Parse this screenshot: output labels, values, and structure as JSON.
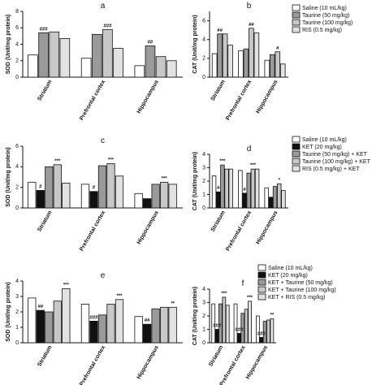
{
  "chart_data": [
    {
      "type": "bar",
      "title": "a",
      "y_label": "SOD (Unit/mg protein)",
      "categories": [
        "Striatum",
        "Prefrontal cortex",
        "Hippocampus"
      ],
      "ylim": [
        0,
        8
      ],
      "yticks": [
        0,
        2,
        4,
        6,
        8
      ],
      "legend": false,
      "series": [
        {
          "name": "Saline (10 mL/kg)",
          "color": "#ffffff",
          "values": [
            2.7,
            2.3,
            1.4
          ]
        },
        {
          "name": "Taurine (50 mg/kg)",
          "color": "#9a9a9a",
          "values": [
            5.4,
            5.2,
            3.8
          ]
        },
        {
          "name": "Taurine (100 mg/kg)",
          "color": "#c8c8c8",
          "values": [
            5.5,
            5.8,
            2.5
          ]
        },
        {
          "name": "RIS (0.5 mg/kg)",
          "color": "#e2e2e2",
          "values": [
            4.7,
            3.5,
            2.0
          ]
        }
      ],
      "annotations": [
        {
          "text": "###",
          "category": 0,
          "series": 1
        },
        {
          "text": "###",
          "category": 1,
          "series": 2
        },
        {
          "text": "##",
          "category": 2,
          "series": 1
        }
      ]
    },
    {
      "type": "bar",
      "title": "b",
      "y_label": "CAT (Unit/mg protein)",
      "categories": [
        "Striatum",
        "Prefrontal cortex",
        "Hippocampus"
      ],
      "ylim": [
        0,
        7
      ],
      "yticks": [
        0,
        2,
        4,
        6
      ],
      "legend": true,
      "series": [
        {
          "name": "Saline (10 mL/kg)",
          "color": "#ffffff",
          "values": [
            2.5,
            2.8,
            1.8
          ]
        },
        {
          "name": "Taurine (50 mg/kg)",
          "color": "#9a9a9a",
          "values": [
            4.6,
            3.0,
            2.4
          ]
        },
        {
          "name": "Taurine (100 mg/kg)",
          "color": "#c8c8c8",
          "values": [
            4.6,
            5.2,
            2.7
          ]
        },
        {
          "name": "RIS (0.5 mg/kg)",
          "color": "#e2e2e2",
          "values": [
            3.4,
            4.7,
            1.4
          ]
        }
      ],
      "annotations": [
        {
          "text": "##",
          "category": 0,
          "series": 1
        },
        {
          "text": "##",
          "category": 1,
          "series": 2
        },
        {
          "text": "#",
          "category": 2,
          "series": 2
        }
      ]
    },
    {
      "type": "bar",
      "title": "c",
      "y_label": "SOD (Unit/mg protein)",
      "categories": [
        "Striatum",
        "Prefrontal cortex",
        "Hippocampus"
      ],
      "ylim": [
        0,
        6
      ],
      "yticks": [
        0,
        2,
        4,
        6
      ],
      "legend": false,
      "series": [
        {
          "name": "Saline (10 mL/kg)",
          "color": "#ffffff",
          "values": [
            2.5,
            2.3,
            1.4
          ]
        },
        {
          "name": "KET (20 mg/kg)",
          "color": "#111111",
          "values": [
            1.7,
            1.6,
            0.9
          ]
        },
        {
          "name": "Taurine (50 mg/kg) + KET",
          "color": "#9a9a9a",
          "values": [
            4.0,
            4.1,
            2.3
          ]
        },
        {
          "name": "Taurine (100 mg/kg) + KET",
          "color": "#c8c8c8",
          "values": [
            4.2,
            4.3,
            2.5
          ]
        },
        {
          "name": "RIS (0.5 mg/kg) + KET",
          "color": "#e2e2e2",
          "values": [
            2.4,
            3.1,
            2.3
          ]
        }
      ],
      "annotations": [
        {
          "text": "#",
          "category": 0,
          "series": 1
        },
        {
          "text": "***",
          "category": 0,
          "series": 3
        },
        {
          "text": "#",
          "category": 1,
          "series": 1
        },
        {
          "text": "***",
          "category": 1,
          "series": 3
        },
        {
          "text": "***",
          "category": 2,
          "series": 3
        }
      ]
    },
    {
      "type": "bar",
      "title": "d",
      "y_label": "CAT (Unit/mg protein)",
      "categories": [
        "Striatum",
        "Prefrontal cortex",
        "Hippocampus"
      ],
      "ylim": [
        0,
        4
      ],
      "yticks": [
        0,
        1,
        2,
        3,
        4
      ],
      "legend": true,
      "series": [
        {
          "name": "Saline (10 mL/kg)",
          "color": "#ffffff",
          "values": [
            2.4,
            2.8,
            1.5
          ]
        },
        {
          "name": "KET (20 mg/kg)",
          "color": "#111111",
          "values": [
            1.2,
            1.1,
            0.8
          ]
        },
        {
          "name": "Taurine (50 mg/kg) + KET",
          "color": "#9a9a9a",
          "values": [
            3.2,
            2.6,
            1.6
          ]
        },
        {
          "name": "Taurine (100 mg/kg) + KET",
          "color": "#c8c8c8",
          "values": [
            2.9,
            2.9,
            1.8
          ]
        },
        {
          "name": "RIS (0.5 mg/kg) + KET",
          "color": "#e2e2e2",
          "values": [
            2.9,
            2.9,
            1.3
          ]
        }
      ],
      "annotations": [
        {
          "text": "#",
          "category": 0,
          "series": 1
        },
        {
          "text": "***",
          "category": 0,
          "series": 2
        },
        {
          "text": "#",
          "category": 1,
          "series": 1
        },
        {
          "text": "***",
          "category": 1,
          "series": 3
        },
        {
          "text": "*",
          "category": 2,
          "series": 3
        }
      ]
    },
    {
      "type": "bar",
      "title": "e",
      "y_label": "SOD (Unit/mg protein)",
      "categories": [
        "Striatum",
        "Prefrontal cortex",
        "Hippocampus"
      ],
      "ylim": [
        0,
        4
      ],
      "yticks": [
        0,
        1,
        2,
        3,
        4
      ],
      "legend": false,
      "series": [
        {
          "name": "Saline (10 mL/kg)",
          "color": "#ffffff",
          "values": [
            2.9,
            2.5,
            1.7
          ]
        },
        {
          "name": "KET (20 mg/kg)",
          "color": "#111111",
          "values": [
            2.1,
            1.4,
            1.2
          ]
        },
        {
          "name": "KET + Taurine (50 mg/kg)",
          "color": "#9a9a9a",
          "values": [
            2.0,
            1.8,
            2.2
          ]
        },
        {
          "name": "KET + Taurine (100 mg/kg)",
          "color": "#c8c8c8",
          "values": [
            2.7,
            2.5,
            2.3
          ]
        },
        {
          "name": "KET + RIS (0.5 mg/kg)",
          "color": "#e2e2e2",
          "values": [
            3.5,
            2.8,
            2.3
          ]
        }
      ],
      "annotations": [
        {
          "text": "##",
          "category": 0,
          "series": 1
        },
        {
          "text": "***",
          "category": 0,
          "series": 4
        },
        {
          "text": "###",
          "category": 1,
          "series": 1
        },
        {
          "text": "***",
          "category": 1,
          "series": 4
        },
        {
          "text": "##",
          "category": 2,
          "series": 1
        },
        {
          "text": "**",
          "category": 2,
          "series": 4
        }
      ]
    },
    {
      "type": "bar",
      "title": "f",
      "y_label": "CAT (Unit/mg protein)",
      "categories": [
        "Striatum",
        "Prefrontal cortex",
        "Hippocampus"
      ],
      "ylim": [
        0,
        4
      ],
      "yticks": [
        0,
        1,
        2,
        3,
        4
      ],
      "legend": true,
      "series": [
        {
          "name": "Saline (10 mL/kg)",
          "color": "#ffffff",
          "values": [
            2.9,
            2.9,
            2.0
          ]
        },
        {
          "name": "KET (20 mg/kg)",
          "color": "#111111",
          "values": [
            1.0,
            0.7,
            0.4
          ]
        },
        {
          "name": "KET + Taurine (50 mg/kg)",
          "color": "#9a9a9a",
          "values": [
            2.9,
            2.2,
            1.6
          ]
        },
        {
          "name": "KET + Taurine (100 mg/kg)",
          "color": "#c8c8c8",
          "values": [
            3.4,
            2.5,
            1.7
          ]
        },
        {
          "name": "KET + RIS (0.5 mg/kg)",
          "color": "#e2e2e2",
          "values": [
            2.8,
            3.1,
            1.8
          ]
        }
      ],
      "annotations": [
        {
          "text": "###",
          "category": 0,
          "series": 1
        },
        {
          "text": "***",
          "category": 0,
          "series": 3
        },
        {
          "text": "###",
          "category": 1,
          "series": 1
        },
        {
          "text": "***",
          "category": 1,
          "series": 4
        },
        {
          "text": "###",
          "category": 2,
          "series": 1
        },
        {
          "text": "**",
          "category": 2,
          "series": 4
        }
      ]
    }
  ]
}
